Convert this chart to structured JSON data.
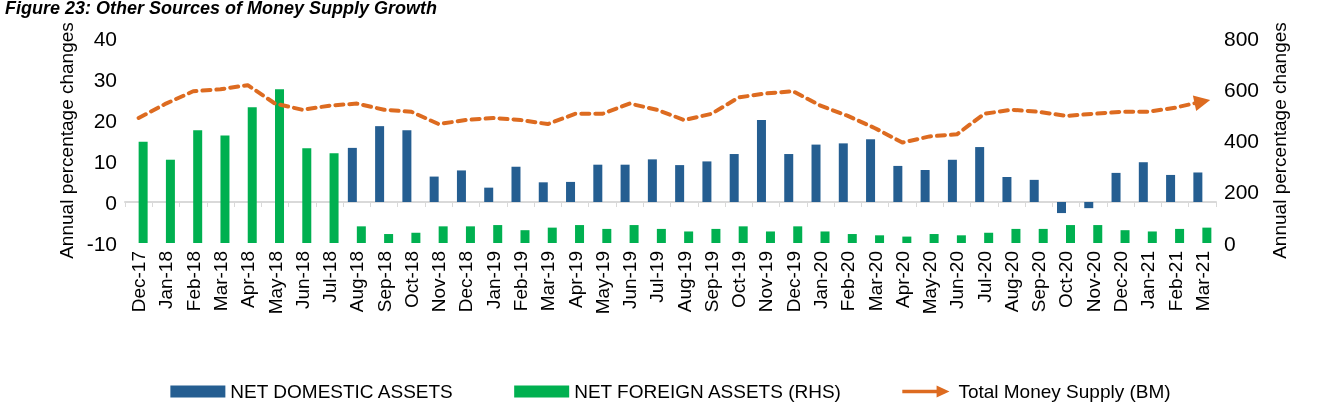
{
  "chart_data": {
    "type": "bar",
    "title": "Figure 23: Other Sources of Money Supply Growth",
    "ylabel": "Annual percentage changes",
    "y2label": "Annual percentage changes",
    "categories": [
      "Dec-17",
      "Jan-18",
      "Feb-18",
      "Mar-18",
      "Apr-18",
      "May-18",
      "Jun-18",
      "Jul-18",
      "Aug-18",
      "Sep-18",
      "Oct-18",
      "Nov-18",
      "Dec-18",
      "Jan-19",
      "Feb-19",
      "Mar-19",
      "Apr-19",
      "May-19",
      "Jun-19",
      "Jul-19",
      "Aug-19",
      "Sep-19",
      "Oct-19",
      "Nov-19",
      "Dec-19",
      "Jan-20",
      "Feb-20",
      "Mar-20",
      "Apr-20",
      "May-20",
      "Jun-20",
      "Jul-20",
      "Aug-20",
      "Sep-20",
      "Oct-20",
      "Nov-20",
      "Dec-20",
      "Jan-21",
      "Feb-21",
      "Mar-21"
    ],
    "series": [
      {
        "name": "NET DOMESTIC ASSETS",
        "color": "#255e91",
        "values": [
          null,
          null,
          null,
          null,
          null,
          null,
          null,
          null,
          13.2,
          18.5,
          17.5,
          6.2,
          7.7,
          3.5,
          8.6,
          4.8,
          4.9,
          9.1,
          9.1,
          10.4,
          9.0,
          9.9,
          11.7,
          20.0,
          11.7,
          14.0,
          14.3,
          15.3,
          8.8,
          7.8,
          10.3,
          13.4,
          6.1,
          5.4,
          -2.7,
          -1.5,
          7.1,
          9.7,
          6.6,
          7.2
        ]
      },
      {
        "name": "NET FOREIGN ASSETS (RHS)",
        "axis": "y2",
        "color": "#00b050",
        "values": [
          395,
          325,
          440,
          420,
          530,
          600,
          370,
          350,
          65,
          35,
          40,
          65,
          65,
          70,
          50,
          60,
          70,
          55,
          70,
          55,
          45,
          55,
          65,
          45,
          65,
          45,
          35,
          30,
          25,
          35,
          30,
          40,
          55,
          55,
          70,
          70,
          50,
          45,
          55,
          60
        ]
      },
      {
        "name": "Total Money Supply (BM)",
        "type": "line",
        "color": "#dd6b20",
        "line_style": "dashed",
        "marker": "none",
        "values": [
          20.5,
          24,
          27,
          27.5,
          28.5,
          24,
          22.5,
          23.5,
          24,
          22.5,
          22,
          19,
          20,
          20.5,
          20,
          19,
          21.5,
          21.5,
          24,
          22.5,
          20,
          21.5,
          25.5,
          26.5,
          27,
          23.5,
          21,
          18,
          14.5,
          16,
          16.5,
          21.5,
          22.5,
          22,
          21,
          21.5,
          22,
          22,
          23,
          24.5
        ]
      }
    ],
    "ylim": [
      -10,
      40
    ],
    "yticks": [
      -10,
      0,
      10,
      20,
      30,
      40
    ],
    "y2lim": [
      0,
      800
    ],
    "y2ticks": [
      0,
      200,
      400,
      600,
      800
    ],
    "grid": false,
    "legend": "bottom"
  }
}
